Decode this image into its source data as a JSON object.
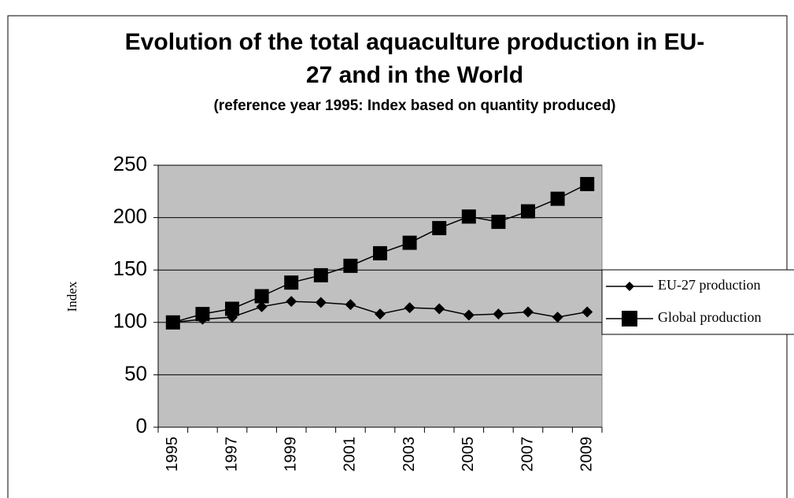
{
  "chart_data": {
    "type": "line",
    "title": "Evolution of the total aquaculture production in EU-27 and in the World",
    "subtitle": "(reference year 1995: Index based on quantity produced)",
    "y_label": "Index",
    "categories": [
      "1995",
      null,
      "1997",
      null,
      "1999",
      null,
      "2001",
      null,
      "2003",
      null,
      "2005",
      null,
      "2007",
      null,
      "2009"
    ],
    "series": [
      {
        "name": "EU-27 production",
        "color": "#000000",
        "marker": "diamond",
        "values": [
          100,
          103,
          105,
          115,
          120,
          119,
          117,
          108,
          114,
          113,
          107,
          108,
          110,
          105,
          110
        ]
      },
      {
        "name": "Global production",
        "color": "#000000",
        "marker": "square",
        "values": [
          100,
          108,
          113,
          125,
          138,
          145,
          154,
          166,
          176,
          190,
          201,
          196,
          206,
          218,
          232
        ]
      }
    ],
    "ylim": [
      0,
      250
    ],
    "yticks": [
      0,
      50,
      100,
      150,
      200,
      250
    ],
    "grid": true,
    "plot_background": "#c0c0c0",
    "legend": "right"
  }
}
